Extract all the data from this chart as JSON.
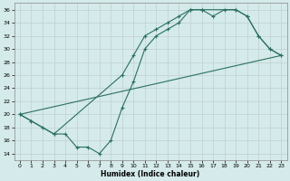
{
  "xlabel": "Humidex (Indice chaleur)",
  "xlim": [
    -0.5,
    23.5
  ],
  "ylim": [
    13,
    37
  ],
  "yticks": [
    14,
    16,
    18,
    20,
    22,
    24,
    26,
    28,
    30,
    32,
    34,
    36
  ],
  "xticks": [
    0,
    1,
    2,
    3,
    4,
    5,
    6,
    7,
    8,
    9,
    10,
    11,
    12,
    13,
    14,
    15,
    16,
    17,
    18,
    19,
    20,
    21,
    22,
    23
  ],
  "bg_color": "#d5eaea",
  "grid_color": "#c0d0d0",
  "line_color": "#2a7060",
  "line1_x": [
    0,
    1,
    2,
    3,
    4,
    5,
    6,
    7,
    8,
    9,
    10,
    11,
    12,
    13,
    14,
    15,
    16,
    17,
    18,
    19,
    20,
    21,
    22,
    23
  ],
  "line1_y": [
    20,
    19,
    18,
    17,
    17,
    15,
    15,
    14,
    16,
    21,
    25,
    30,
    32,
    33,
    34,
    36,
    36,
    35,
    36,
    36,
    35,
    32,
    30,
    29
  ],
  "line2_x": [
    0,
    23
  ],
  "line2_y": [
    20,
    29
  ],
  "line3_x": [
    0,
    1,
    3,
    9,
    10,
    11,
    12,
    13,
    14,
    15,
    16,
    19,
    20,
    21,
    22,
    23
  ],
  "line3_y": [
    20,
    19,
    17,
    26,
    29,
    32,
    33,
    34,
    35,
    36,
    36,
    36,
    35,
    32,
    30,
    29
  ]
}
